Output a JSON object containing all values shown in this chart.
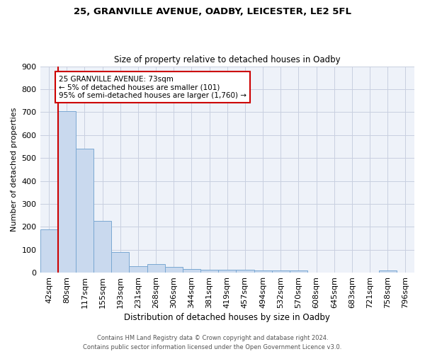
{
  "title1": "25, GRANVILLE AVENUE, OADBY, LEICESTER, LE2 5FL",
  "title2": "Size of property relative to detached houses in Oadby",
  "xlabel": "Distribution of detached houses by size in Oadby",
  "ylabel": "Number of detached properties",
  "categories": [
    "42sqm",
    "80sqm",
    "117sqm",
    "155sqm",
    "193sqm",
    "231sqm",
    "268sqm",
    "306sqm",
    "344sqm",
    "381sqm",
    "419sqm",
    "457sqm",
    "494sqm",
    "532sqm",
    "570sqm",
    "608sqm",
    "645sqm",
    "683sqm",
    "721sqm",
    "758sqm",
    "796sqm"
  ],
  "values": [
    190,
    705,
    540,
    225,
    90,
    27,
    37,
    25,
    15,
    13,
    13,
    12,
    10,
    10,
    8,
    0,
    0,
    0,
    0,
    10,
    0
  ],
  "bar_color": "#c9d9ee",
  "bar_edge_color": "#7aa8d2",
  "annotation_box_text": "25 GRANVILLE AVENUE: 73sqm\n← 5% of detached houses are smaller (101)\n95% of semi-detached houses are larger (1,760) →",
  "annotation_box_color": "#ffffff",
  "annotation_box_edge_color": "#cc0000",
  "vline_x": 0.5,
  "ylim": [
    0,
    900
  ],
  "yticks": [
    0,
    100,
    200,
    300,
    400,
    500,
    600,
    700,
    800,
    900
  ],
  "footer1": "Contains HM Land Registry data © Crown copyright and database right 2024.",
  "footer2": "Contains public sector information licensed under the Open Government Licence v3.0.",
  "bg_color": "#eef2f9",
  "grid_color": "#c8cfe0"
}
